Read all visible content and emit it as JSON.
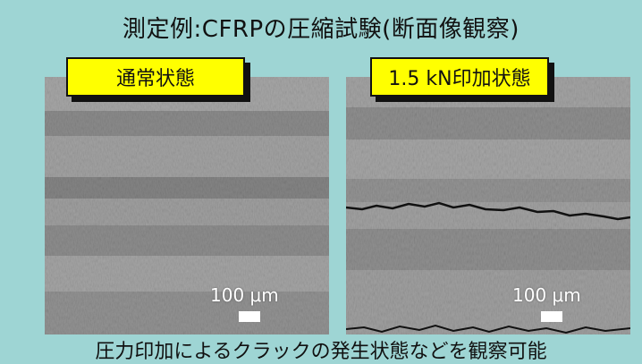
{
  "title": "測定例:CFRPの圧縮試験(断面像観察)",
  "panels": [
    {
      "label": "通常状態",
      "scale": "100 μm"
    },
    {
      "label": "1.5 kN印加状態",
      "scale": "100 μm"
    }
  ],
  "caption": "圧力印加によるクラックの発生状態などを観察可能",
  "colors": {
    "background": "#9ed5d4",
    "label_fill": "#ffff00"
  }
}
